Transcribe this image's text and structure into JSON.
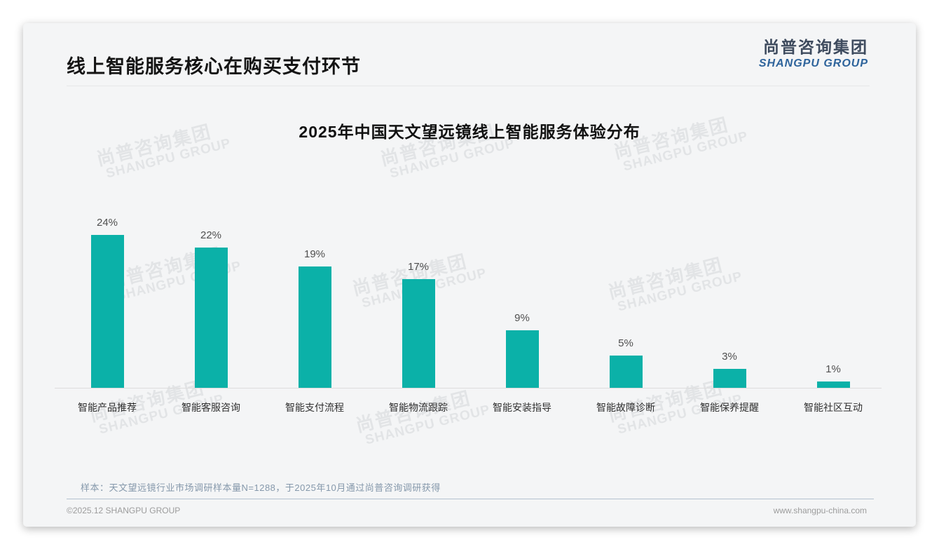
{
  "header": {
    "title": "线上智能服务核心在购买支付环节",
    "logo": {
      "cn": "尚普咨询集团",
      "en": "SHANGPU GROUP"
    }
  },
  "watermark": {
    "cn": "尚普咨询集团",
    "en": "SHANGPU GROUP"
  },
  "chart_data": {
    "type": "bar",
    "title": "2025年中国天文望远镜线上智能服务体验分布",
    "categories": [
      "智能产品推荐",
      "智能客服咨询",
      "智能支付流程",
      "智能物流跟踪",
      "智能安装指导",
      "智能故障诊断",
      "智能保养提醒",
      "智能社区互动"
    ],
    "values": [
      24,
      22,
      19,
      17,
      9,
      5,
      3,
      1
    ],
    "unit": "%",
    "data_labels_visible": true,
    "bar_color": "#0bb1a8",
    "xlabel": "",
    "ylabel": "",
    "grid": false,
    "legend": null,
    "y_axis_visible": false,
    "x_axis_visible": true
  },
  "footnote": "样本：天文望远镜行业市场调研样本量N=1288，于2025年10月通过尚普咨询调研获得",
  "footer": {
    "left": "©2025.12 SHANGPU GROUP",
    "right": "www.shangpu-china.com"
  }
}
